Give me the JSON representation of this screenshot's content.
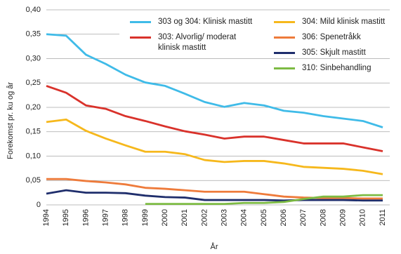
{
  "chart_data": {
    "type": "line",
    "y_label": "Forekomst pr. ku og år",
    "x_label": "År",
    "categories": [
      "1994",
      "1995",
      "1996",
      "1997",
      "1998",
      "1999",
      "2000",
      "2001",
      "2002",
      "2003",
      "2004",
      "2005",
      "2006",
      "2007",
      "2008",
      "2009",
      "2010",
      "2011"
    ],
    "ylim": [
      0,
      0.4
    ],
    "yticks": [
      0,
      {
        "value": 0.05,
        "label": "0,05"
      },
      {
        "value": 0.1,
        "label": "0,10"
      },
      {
        "value": 0.15,
        "label": "0,15"
      },
      {
        "value": 0.2,
        "label": "0,20"
      },
      {
        "value": 0.25,
        "label": "0,25"
      },
      {
        "value": 0.3,
        "label": "0,30"
      },
      {
        "value": 0.35,
        "label": "0,35"
      },
      {
        "value": 0.4,
        "label": "0,40"
      }
    ],
    "grid": true,
    "series": [
      {
        "name": "303 og 304: Klinisk mastitt",
        "color": "#3fbbe8",
        "values": [
          0.35,
          0.347,
          0.308,
          0.289,
          0.267,
          0.251,
          0.244,
          0.228,
          0.211,
          0.201,
          0.209,
          0.204,
          0.193,
          0.189,
          0.182,
          0.177,
          0.172,
          0.159
        ]
      },
      {
        "name": "303: Alvorlig/ moderat klinisk mastitt",
        "color": "#d9322b",
        "values": [
          0.244,
          0.23,
          0.204,
          0.197,
          0.182,
          0.172,
          0.161,
          0.151,
          0.144,
          0.136,
          0.14,
          0.14,
          0.133,
          0.126,
          0.126,
          0.126,
          0.118,
          0.11
        ]
      },
      {
        "name": "304: Mild klinisk mastitt",
        "color": "#f6b81c",
        "values": [
          0.17,
          0.175,
          0.152,
          0.136,
          0.122,
          0.109,
          0.109,
          0.104,
          0.092,
          0.088,
          0.09,
          0.09,
          0.085,
          0.078,
          0.076,
          0.074,
          0.07,
          0.063
        ]
      },
      {
        "name": "306: Spenetråkk",
        "color": "#ee7b3b",
        "values": [
          0.053,
          0.053,
          0.049,
          0.046,
          0.042,
          0.035,
          0.033,
          0.03,
          0.027,
          0.027,
          0.027,
          0.022,
          0.017,
          0.015,
          0.014,
          0.014,
          0.013,
          0.013
        ]
      },
      {
        "name": "305: Skjult mastitt",
        "color": "#1f2e6c",
        "values": [
          0.023,
          0.03,
          0.025,
          0.025,
          0.024,
          0.019,
          0.016,
          0.015,
          0.01,
          0.01,
          0.01,
          0.01,
          0.009,
          0.01,
          0.01,
          0.01,
          0.009,
          0.009
        ]
      },
      {
        "name": "310: Sinbehandling",
        "color": "#7dbb43",
        "values": [
          null,
          null,
          null,
          null,
          null,
          0.002,
          0.002,
          0.002,
          0.002,
          0.002,
          0.004,
          0.004,
          0.006,
          0.012,
          0.017,
          0.017,
          0.02,
          0.02
        ]
      }
    ]
  }
}
